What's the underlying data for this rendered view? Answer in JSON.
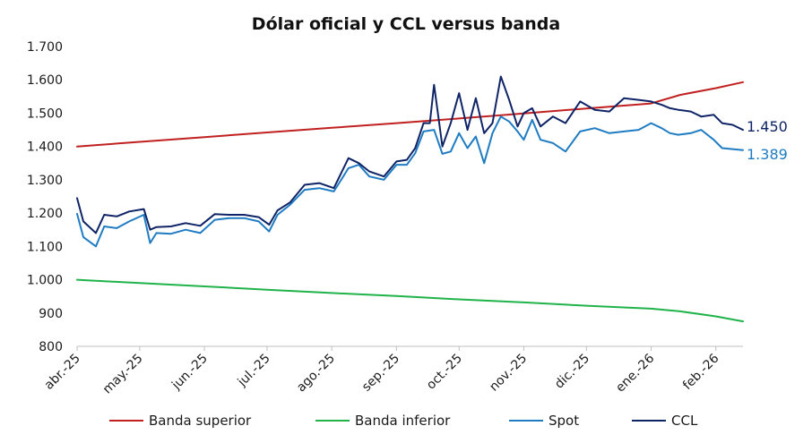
{
  "chart_data": {
    "type": "line",
    "title": "Dólar oficial y CCL versus banda",
    "xlabel": "",
    "ylabel": "",
    "ylim": [
      800,
      1700
    ],
    "yticks": [
      "800",
      "900",
      "1.000",
      "1.100",
      "1.200",
      "1.300",
      "1.400",
      "1.500",
      "1.600",
      "1.700"
    ],
    "ytick_values": [
      800,
      900,
      1000,
      1100,
      1200,
      1300,
      1400,
      1500,
      1600,
      1700
    ],
    "xlim": [
      "2025-04-01",
      "2026-02-14"
    ],
    "xticks": [
      "abr.-25",
      "may.-25",
      "jun.-25",
      "jul.-25",
      "ago.-25",
      "sep.-25",
      "oct.-25",
      "nov.-25",
      "dic.-25",
      "ene.-26",
      "feb.-26"
    ],
    "xtick_dates": [
      "2025-04-01",
      "2025-05-01",
      "2025-06-01",
      "2025-07-01",
      "2025-08-01",
      "2025-09-01",
      "2025-10-01",
      "2025-11-01",
      "2025-12-01",
      "2026-01-01",
      "2026-02-01"
    ],
    "grid": false,
    "legend_position": "bottom",
    "series": [
      {
        "name": "Banda superior",
        "color": "#c0201f",
        "points": [
          [
            "2025-04-01",
            1400
          ],
          [
            "2025-05-01",
            1414
          ],
          [
            "2025-06-01",
            1428
          ],
          [
            "2025-07-01",
            1442
          ],
          [
            "2025-08-01",
            1456
          ],
          [
            "2025-09-01",
            1470
          ],
          [
            "2025-10-01",
            1484
          ],
          [
            "2025-11-01",
            1499
          ],
          [
            "2025-12-01",
            1514
          ],
          [
            "2026-01-01",
            1529
          ],
          [
            "2026-01-15",
            1555
          ],
          [
            "2026-02-01",
            1575
          ],
          [
            "2026-02-14",
            1593
          ]
        ]
      },
      {
        "name": "Banda inferior",
        "color": "#1fb34a",
        "points": [
          [
            "2025-04-01",
            1000
          ],
          [
            "2025-05-01",
            990
          ],
          [
            "2025-06-01",
            980
          ],
          [
            "2025-07-01",
            970
          ],
          [
            "2025-08-01",
            960
          ],
          [
            "2025-09-01",
            951
          ],
          [
            "2025-10-01",
            941
          ],
          [
            "2025-11-01",
            932
          ],
          [
            "2025-12-01",
            922
          ],
          [
            "2026-01-01",
            913
          ],
          [
            "2026-01-15",
            905
          ],
          [
            "2026-02-01",
            890
          ],
          [
            "2026-02-14",
            875
          ]
        ]
      },
      {
        "name": "Spot",
        "color": "#1f7cc2",
        "points": [
          [
            "2025-04-01",
            1198
          ],
          [
            "2025-04-04",
            1128
          ],
          [
            "2025-04-10",
            1100
          ],
          [
            "2025-04-14",
            1160
          ],
          [
            "2025-04-20",
            1155
          ],
          [
            "2025-04-26",
            1175
          ],
          [
            "2025-05-03",
            1195
          ],
          [
            "2025-05-06",
            1110
          ],
          [
            "2025-05-09",
            1140
          ],
          [
            "2025-05-16",
            1138
          ],
          [
            "2025-05-23",
            1150
          ],
          [
            "2025-05-30",
            1140
          ],
          [
            "2025-06-06",
            1180
          ],
          [
            "2025-06-13",
            1185
          ],
          [
            "2025-06-20",
            1185
          ],
          [
            "2025-06-27",
            1175
          ],
          [
            "2025-07-02",
            1145
          ],
          [
            "2025-07-06",
            1195
          ],
          [
            "2025-07-12",
            1225
          ],
          [
            "2025-07-19",
            1270
          ],
          [
            "2025-07-26",
            1275
          ],
          [
            "2025-08-02",
            1265
          ],
          [
            "2025-08-09",
            1335
          ],
          [
            "2025-08-14",
            1345
          ],
          [
            "2025-08-19",
            1310
          ],
          [
            "2025-08-26",
            1300
          ],
          [
            "2025-09-01",
            1345
          ],
          [
            "2025-09-06",
            1345
          ],
          [
            "2025-09-10",
            1380
          ],
          [
            "2025-09-14",
            1445
          ],
          [
            "2025-09-19",
            1450
          ],
          [
            "2025-09-23",
            1378
          ],
          [
            "2025-09-27",
            1385
          ],
          [
            "2025-10-01",
            1440
          ],
          [
            "2025-10-05",
            1395
          ],
          [
            "2025-10-09",
            1430
          ],
          [
            "2025-10-13",
            1350
          ],
          [
            "2025-10-17",
            1440
          ],
          [
            "2025-10-21",
            1490
          ],
          [
            "2025-10-25",
            1475
          ],
          [
            "2025-10-29",
            1445
          ],
          [
            "2025-11-01",
            1420
          ],
          [
            "2025-11-05",
            1480
          ],
          [
            "2025-11-09",
            1420
          ],
          [
            "2025-11-15",
            1410
          ],
          [
            "2025-11-21",
            1385
          ],
          [
            "2025-11-28",
            1445
          ],
          [
            "2025-12-05",
            1455
          ],
          [
            "2025-12-12",
            1440
          ],
          [
            "2025-12-19",
            1445
          ],
          [
            "2025-12-26",
            1450
          ],
          [
            "2026-01-01",
            1470
          ],
          [
            "2026-01-06",
            1455
          ],
          [
            "2026-01-10",
            1440
          ],
          [
            "2026-01-14",
            1435
          ],
          [
            "2026-01-20",
            1440
          ],
          [
            "2026-01-25",
            1450
          ],
          [
            "2026-01-31",
            1420
          ],
          [
            "2026-02-04",
            1395
          ],
          [
            "2026-02-09",
            1392
          ],
          [
            "2026-02-14",
            1389
          ]
        ]
      },
      {
        "name": "CCL",
        "color": "#0f2466",
        "points": [
          [
            "2025-04-01",
            1245
          ],
          [
            "2025-04-04",
            1175
          ],
          [
            "2025-04-10",
            1140
          ],
          [
            "2025-04-14",
            1195
          ],
          [
            "2025-04-20",
            1190
          ],
          [
            "2025-04-26",
            1205
          ],
          [
            "2025-05-03",
            1212
          ],
          [
            "2025-05-06",
            1150
          ],
          [
            "2025-05-09",
            1158
          ],
          [
            "2025-05-16",
            1160
          ],
          [
            "2025-05-23",
            1170
          ],
          [
            "2025-05-30",
            1162
          ],
          [
            "2025-06-06",
            1197
          ],
          [
            "2025-06-13",
            1195
          ],
          [
            "2025-06-20",
            1195
          ],
          [
            "2025-06-27",
            1188
          ],
          [
            "2025-07-02",
            1165
          ],
          [
            "2025-07-06",
            1208
          ],
          [
            "2025-07-12",
            1232
          ],
          [
            "2025-07-19",
            1285
          ],
          [
            "2025-07-26",
            1290
          ],
          [
            "2025-08-02",
            1275
          ],
          [
            "2025-08-09",
            1365
          ],
          [
            "2025-08-14",
            1350
          ],
          [
            "2025-08-19",
            1325
          ],
          [
            "2025-08-26",
            1310
          ],
          [
            "2025-09-01",
            1355
          ],
          [
            "2025-09-06",
            1360
          ],
          [
            "2025-09-10",
            1395
          ],
          [
            "2025-09-14",
            1470
          ],
          [
            "2025-09-17",
            1470
          ],
          [
            "2025-09-19",
            1585
          ],
          [
            "2025-09-23",
            1400
          ],
          [
            "2025-09-27",
            1470
          ],
          [
            "2025-10-01",
            1560
          ],
          [
            "2025-10-05",
            1450
          ],
          [
            "2025-10-09",
            1545
          ],
          [
            "2025-10-13",
            1440
          ],
          [
            "2025-10-17",
            1470
          ],
          [
            "2025-10-21",
            1610
          ],
          [
            "2025-10-25",
            1540
          ],
          [
            "2025-10-29",
            1460
          ],
          [
            "2025-11-01",
            1500
          ],
          [
            "2025-11-05",
            1515
          ],
          [
            "2025-11-09",
            1460
          ],
          [
            "2025-11-15",
            1490
          ],
          [
            "2025-11-21",
            1470
          ],
          [
            "2025-11-28",
            1535
          ],
          [
            "2025-12-05",
            1510
          ],
          [
            "2025-12-12",
            1505
          ],
          [
            "2025-12-19",
            1545
          ],
          [
            "2025-12-26",
            1540
          ],
          [
            "2026-01-01",
            1535
          ],
          [
            "2026-01-06",
            1525
          ],
          [
            "2026-01-10",
            1515
          ],
          [
            "2026-01-14",
            1510
          ],
          [
            "2026-01-20",
            1505
          ],
          [
            "2026-01-25",
            1490
          ],
          [
            "2026-01-31",
            1495
          ],
          [
            "2026-02-04",
            1470
          ],
          [
            "2026-02-09",
            1465
          ],
          [
            "2026-02-14",
            1450
          ]
        ]
      }
    ],
    "end_labels": [
      {
        "text": "1.450",
        "series": "CCL",
        "color": "#0f2466"
      },
      {
        "text": "1.389",
        "series": "Spot",
        "color": "#1f7cc2"
      }
    ]
  }
}
